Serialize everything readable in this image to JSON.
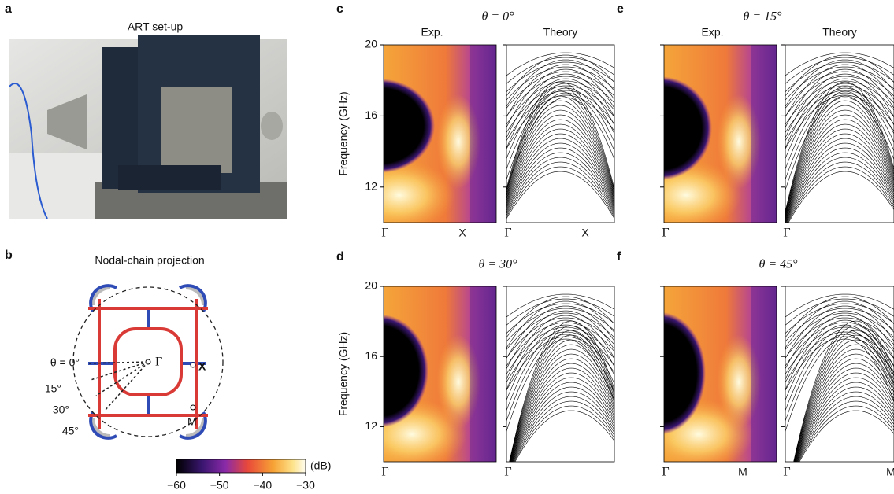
{
  "panels": {
    "a": {
      "letter": "a",
      "title": "ART set-up"
    },
    "b": {
      "letter": "b",
      "title": "Nodal-chain projection",
      "gamma": "Γ",
      "x": "X",
      "m": "M",
      "angles": [
        "θ = 0°",
        "15°",
        "30°",
        "45°"
      ]
    },
    "colorbar": {
      "unit": "(dB)",
      "lim": [
        -60,
        -30
      ],
      "ticks": [
        {
          "value": -60,
          "label": "−60"
        },
        {
          "value": -50,
          "label": "−50"
        },
        {
          "value": -40,
          "label": "−40"
        },
        {
          "value": -30,
          "label": "−30"
        }
      ]
    },
    "frequency_axis": {
      "label": "Frequency (GHz)",
      "ylim": [
        10,
        20
      ],
      "yticks": [
        12,
        16,
        20
      ]
    },
    "spectra": [
      {
        "letter": "c",
        "angle": "θ = 0°",
        "exp": "Exp.",
        "theory": "Theory",
        "show_axis": true,
        "exp_x": [
          "Γ",
          "X"
        ],
        "theory_x": [
          "Γ",
          "X"
        ]
      },
      {
        "letter": "e",
        "angle": "θ = 15°",
        "exp": "Exp.",
        "theory": "Theory",
        "show_axis": false,
        "exp_x": [
          "Γ"
        ],
        "theory_x": [
          "Γ"
        ]
      },
      {
        "letter": "d",
        "angle": "θ = 30°",
        "show_axis": true,
        "exp_x": [
          "Γ"
        ],
        "theory_x": [
          "Γ"
        ]
      },
      {
        "letter": "f",
        "angle": "θ = 45°",
        "show_axis": false,
        "exp_x": [
          "Γ",
          "M"
        ],
        "theory_x": [
          "Γ",
          "M"
        ]
      }
    ]
  }
}
